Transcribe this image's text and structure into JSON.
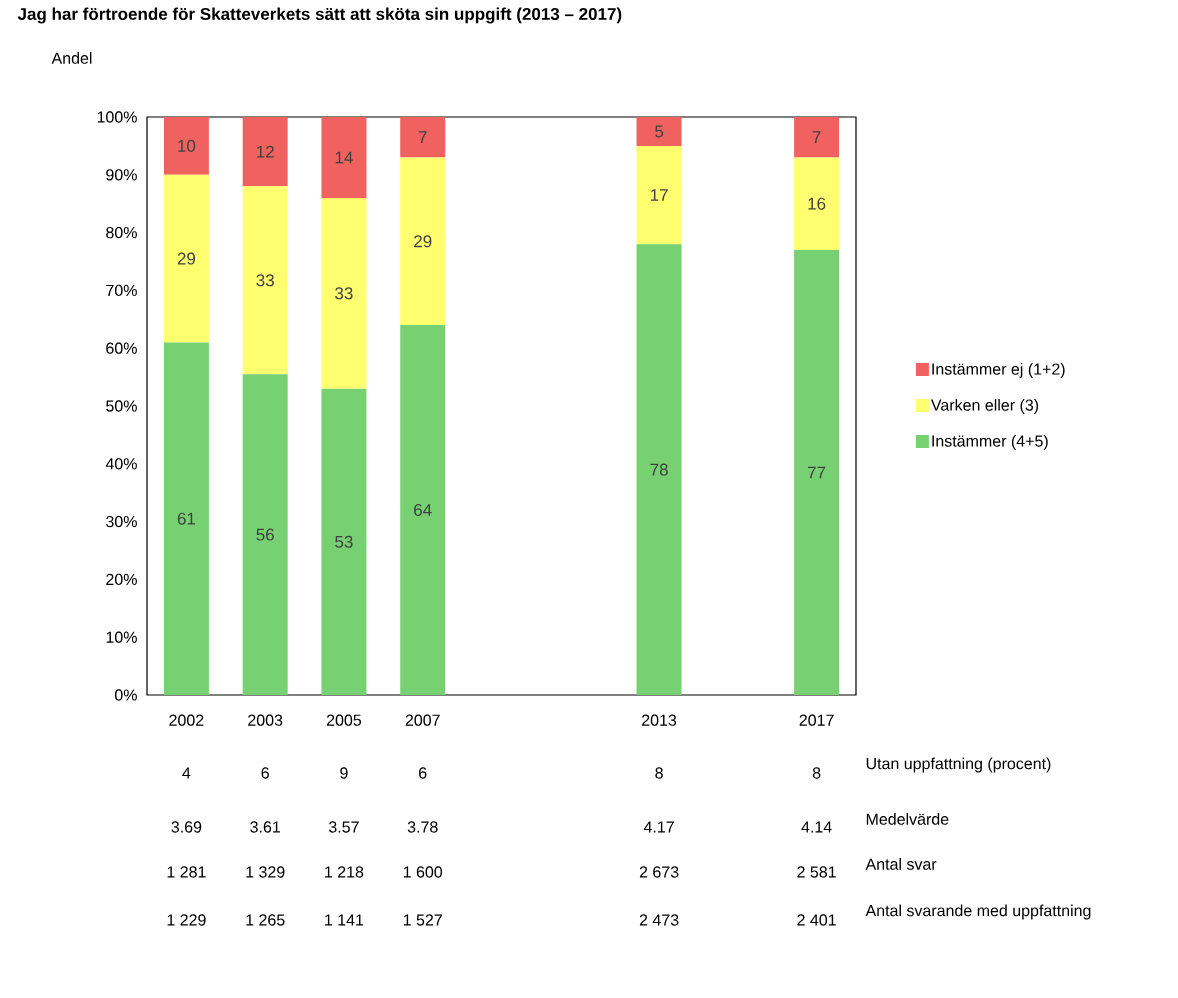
{
  "chart_data": {
    "type": "bar",
    "stacked": true,
    "title": "Jag har förtroende för Skatteverkets sätt att sköta sin uppgift (2013 – 2017)",
    "ylabel": "Andel",
    "categories": [
      "2002",
      "2003",
      "2005",
      "2007",
      null,
      null,
      "2013",
      null,
      "2017"
    ],
    "series": [
      {
        "name": "Instämmer (4+5)",
        "color": "#77d172",
        "values": [
          61,
          55.5,
          53,
          64,
          null,
          null,
          78,
          null,
          77
        ],
        "value_labels": [
          "61",
          "56",
          "53",
          "64",
          null,
          null,
          "78",
          null,
          "77"
        ]
      },
      {
        "name": "Varken eller (3)",
        "color": "#ffff70",
        "values": [
          29,
          32.5,
          33,
          29,
          null,
          null,
          17,
          null,
          16
        ],
        "value_labels": [
          "29",
          "33",
          "33",
          "29",
          null,
          null,
          "17",
          null,
          "16"
        ]
      },
      {
        "name": "Instämmer ej (1+2)",
        "color": "#f06260",
        "values": [
          10,
          12,
          14,
          7,
          null,
          null,
          5,
          null,
          7
        ],
        "value_labels": [
          "10",
          "12",
          "14",
          "7",
          null,
          null,
          "5",
          null,
          "7"
        ]
      }
    ],
    "ylim": [
      0,
      100
    ],
    "yticks": [
      {
        "value": 0,
        "label": "0%"
      },
      {
        "value": 10,
        "label": "10%"
      },
      {
        "value": 20,
        "label": "20%"
      },
      {
        "value": 30,
        "label": "30%"
      },
      {
        "value": 40,
        "label": "40%"
      },
      {
        "value": 50,
        "label": "50%"
      },
      {
        "value": 60,
        "label": "60%"
      },
      {
        "value": 70,
        "label": "70%"
      },
      {
        "value": 80,
        "label": "80%"
      },
      {
        "value": 90,
        "label": "90%"
      },
      {
        "value": 100,
        "label": "100%"
      }
    ],
    "legend": "right",
    "annotations": [
      "Utan uppfattning (procent)",
      "4",
      "6",
      "9",
      "6",
      "8",
      "8",
      "Medelvärde",
      "3.69",
      "3.61",
      "3.57",
      "3.78",
      "4.17",
      "4.14",
      "Antal svar",
      "1 281",
      "1 329",
      "1 218",
      "1 600",
      "2 673",
      "2 581",
      "Antal svarande med uppfattning",
      "1 229",
      "1 265",
      "1 141",
      "1 527",
      "2 473",
      "2 401"
    ]
  }
}
